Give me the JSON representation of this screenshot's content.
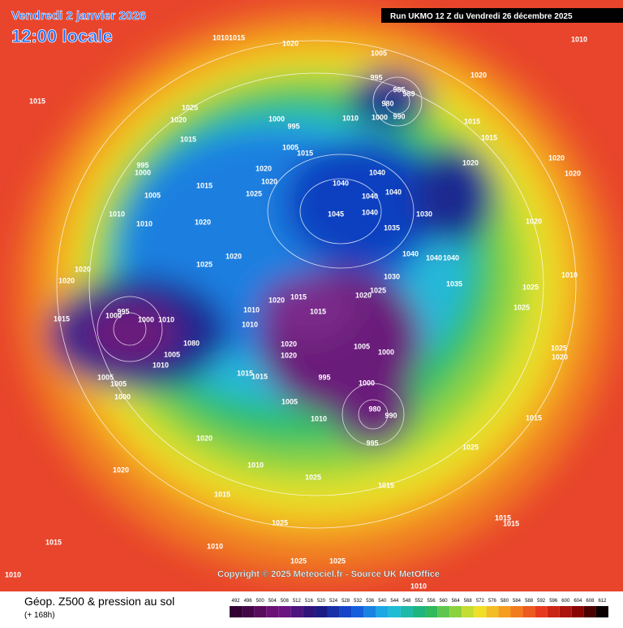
{
  "header": {
    "date": "Vendredi 2 janvier 2026",
    "time": "12:00 locale",
    "run": "Run UKMO 12 Z du Vendredi 26 décembre 2025"
  },
  "map": {
    "copyright": "Copyright © 2025 Meteociel.fr - Source UK MetOffice",
    "isobar_labels": [
      "1010",
      "1015",
      "1020",
      "1005",
      "1010",
      "1015",
      "1025",
      "1020",
      "1015",
      "995",
      "985",
      "980",
      "989",
      "1000",
      "990",
      "1010",
      "1020",
      "1015",
      "1015",
      "1000",
      "995",
      "1005",
      "1015",
      "995",
      "1000",
      "1020",
      "1020",
      "1015",
      "1025",
      "1005",
      "1040",
      "1040",
      "1040",
      "1040",
      "1020",
      "1020",
      "1020",
      "1010",
      "1010",
      "1020",
      "1045",
      "1040",
      "1030",
      "1035",
      "1020",
      "1020",
      "1025",
      "1040",
      "1040",
      "1040",
      "1020",
      "1020",
      "1030",
      "1035",
      "1025",
      "1010",
      "1025",
      "1020",
      "1015",
      "1020",
      "1015",
      "1025",
      "995",
      "1000",
      "1015",
      "1000",
      "1010",
      "1010",
      "1010",
      "1020",
      "1020",
      "1005",
      "1000",
      "1080",
      "1005",
      "1010",
      "1025",
      "1020",
      "1015",
      "1015",
      "995",
      "1000",
      "1005",
      "1005",
      "1000",
      "1005",
      "980",
      "990",
      "1010",
      "995",
      "1015",
      "1020",
      "1025",
      "1010",
      "1020",
      "1025",
      "1015",
      "1015",
      "1025",
      "1015",
      "1015",
      "1015",
      "1010",
      "1025",
      "1025",
      "1010",
      "1010"
    ]
  },
  "legend": {
    "title": "Géop. Z500 & pression au sol",
    "subtitle": "(+ 168h)",
    "levels": [
      492,
      496,
      500,
      504,
      508,
      512,
      516,
      520,
      524,
      528,
      532,
      536,
      540,
      544,
      548,
      552,
      556,
      560,
      564,
      568,
      572,
      576,
      580,
      584,
      588,
      592,
      596,
      600,
      604,
      608,
      612
    ]
  }
}
